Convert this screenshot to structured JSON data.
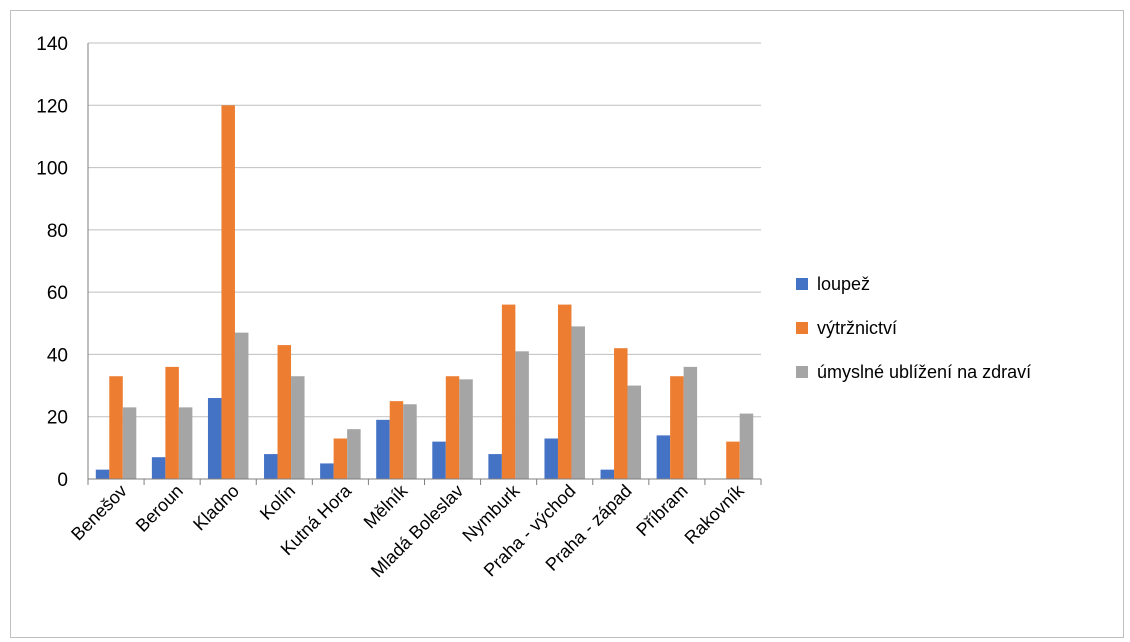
{
  "chart_data": {
    "type": "bar",
    "categories": [
      "Benešov",
      "Beroun",
      "Kladno",
      "Kolín",
      "Kutná Hora",
      "Mělník",
      "Mladá Boleslav",
      "Nymburk",
      "Praha - východ",
      "Praha - západ",
      "Příbram",
      "Rakovník"
    ],
    "series": [
      {
        "name": "loupež",
        "color": "#4472c4",
        "values": [
          3,
          7,
          26,
          8,
          5,
          19,
          12,
          8,
          13,
          3,
          14,
          0
        ]
      },
      {
        "name": "výtržnictví",
        "color": "#ed7d31",
        "values": [
          33,
          36,
          120,
          43,
          13,
          25,
          33,
          56,
          56,
          42,
          33,
          12
        ]
      },
      {
        "name": "úmyslné ublížení na zdraví",
        "color": "#a5a5a5",
        "values": [
          23,
          23,
          47,
          33,
          16,
          24,
          32,
          41,
          49,
          30,
          36,
          21
        ]
      }
    ],
    "y_ticks": [
      "0",
      "20",
      "40",
      "60",
      "80",
      "100",
      "120",
      "140"
    ],
    "ylim": [
      0,
      140
    ],
    "grid": true,
    "legend": "right"
  }
}
